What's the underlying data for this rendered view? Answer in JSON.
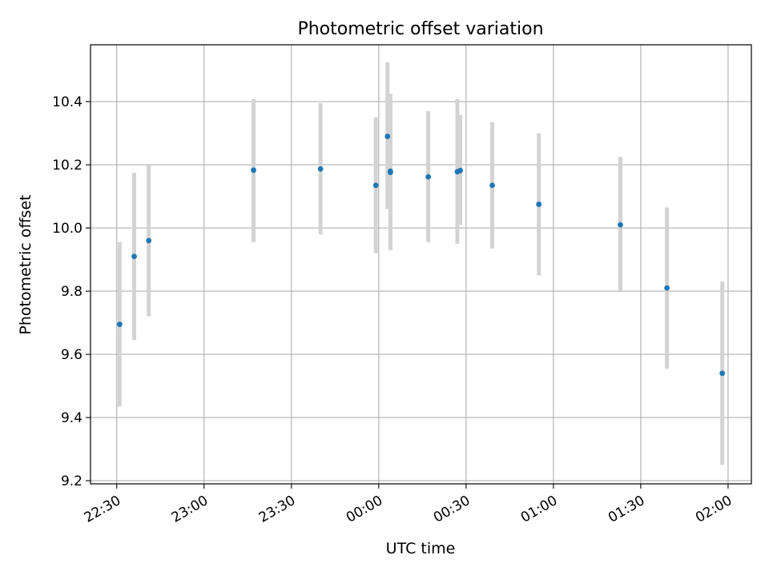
{
  "chart_data": {
    "type": "scatter",
    "title": "Photometric offset variation",
    "xlabel": "UTC time",
    "ylabel": "Photometric offset",
    "x_axis_kind": "time",
    "xlim": [
      "22:21",
      "02:08"
    ],
    "ylim": [
      9.19,
      10.58
    ],
    "x_ticks": [
      "22:30",
      "23:00",
      "23:30",
      "00:00",
      "00:30",
      "01:00",
      "01:30",
      "02:00"
    ],
    "y_ticks": [
      "9.2",
      "9.4",
      "9.6",
      "9.8",
      "10.0",
      "10.2",
      "10.4"
    ],
    "grid": true,
    "colors": {
      "point": "#1f77b4",
      "errorbar": "#d3d3d3",
      "grid": "#b0b0b0"
    },
    "points": [
      {
        "x": "22:31",
        "y": 9.695,
        "ylow": 9.435,
        "yhigh": 9.955
      },
      {
        "x": "22:36",
        "y": 9.91,
        "ylow": 9.645,
        "yhigh": 10.175
      },
      {
        "x": "22:41",
        "y": 9.96,
        "ylow": 9.72,
        "yhigh": 10.2
      },
      {
        "x": "23:17",
        "y": 10.183,
        "ylow": 9.955,
        "yhigh": 10.408
      },
      {
        "x": "23:40",
        "y": 10.187,
        "ylow": 9.98,
        "yhigh": 10.395
      },
      {
        "x": "23:59",
        "y": 10.135,
        "ylow": 9.92,
        "yhigh": 10.35
      },
      {
        "x": "00:03",
        "y": 10.29,
        "ylow": 10.06,
        "yhigh": 10.525
      },
      {
        "x": "00:04",
        "y": 10.176,
        "ylow": 9.93,
        "yhigh": 10.425
      },
      {
        "x": "00:04",
        "y": 10.18,
        "ylow": 9.94,
        "yhigh": 10.415
      },
      {
        "x": "00:17",
        "y": 10.162,
        "ylow": 9.955,
        "yhigh": 10.37
      },
      {
        "x": "00:27",
        "y": 10.178,
        "ylow": 9.95,
        "yhigh": 10.408
      },
      {
        "x": "00:28",
        "y": 10.182,
        "ylow": 10.01,
        "yhigh": 10.358
      },
      {
        "x": "00:39",
        "y": 10.135,
        "ylow": 9.935,
        "yhigh": 10.335
      },
      {
        "x": "00:55",
        "y": 10.075,
        "ylow": 9.85,
        "yhigh": 10.3
      },
      {
        "x": "01:23",
        "y": 10.01,
        "ylow": 9.8,
        "yhigh": 10.225
      },
      {
        "x": "01:39",
        "y": 9.81,
        "ylow": 9.555,
        "yhigh": 10.065
      },
      {
        "x": "01:58",
        "y": 9.54,
        "ylow": 9.25,
        "yhigh": 9.83
      }
    ]
  }
}
